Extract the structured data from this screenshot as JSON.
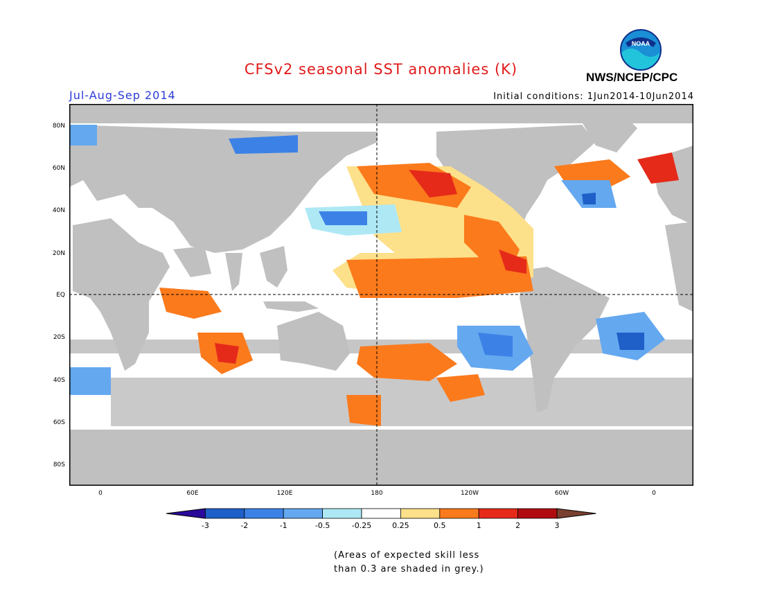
{
  "header": {
    "title": "CFSv2 seasonal SST anomalies (K)",
    "season": "Jul-Aug-Sep 2014",
    "initial_conditions": "Initial conditions: 1Jun2014-10Jun2014",
    "agency": "NWS/NCEP/CPC",
    "logo_text": "NOAA"
  },
  "map": {
    "lat_labels": [
      "80N",
      "60N",
      "40N",
      "20N",
      "EQ",
      "20S",
      "40S",
      "60S",
      "80S"
    ],
    "lon_labels": [
      "0",
      "60E",
      "120E",
      "180",
      "120W",
      "60W",
      "0"
    ],
    "land_color": "#c0c0c0",
    "grey_shading_meaning": "skill less than 0.3"
  },
  "colorbar": {
    "tick_labels": [
      "-3",
      "-2",
      "-1",
      "-0.5",
      "-0.25",
      "0.25",
      "0.5",
      "1",
      "2",
      "3"
    ],
    "colors": [
      "#2a0a9a",
      "#1e5fc8",
      "#3c82e6",
      "#64a8f0",
      "#aee8f5",
      "#ffffff",
      "#fde08a",
      "#fb7a1c",
      "#e52a1a",
      "#b00c10",
      "#7a4030"
    ]
  },
  "footnote": {
    "line1": "(Areas of expected skill less",
    "line2": "than 0.3 are shaded in grey.)"
  }
}
